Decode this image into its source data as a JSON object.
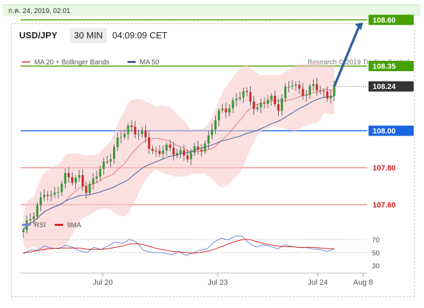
{
  "timestamp": "ก.ค. 24, 2019, 02:01",
  "header": {
    "symbol": "USD/JPY",
    "timeframe": "30 MIN",
    "time": "04:09:09 CET"
  },
  "legend": {
    "ma20_bb": "MA 20 + Bollinger Bands",
    "ma50": "MA 50",
    "rsi": "RSI",
    "ma9": "9MA"
  },
  "credit": "Research © 2019 Trading Central",
  "colors": {
    "support": "#e05555",
    "resistance": "#48a000",
    "pivot": "#1a66e0",
    "current": "#333333",
    "arrow": "#2e5fa0",
    "rsi": "#6f86d6",
    "ma9": "#d42020"
  },
  "chart_data": [
    {
      "type": "candlestick",
      "levels": [
        {
          "label": "108.60",
          "kind": "resistance"
        },
        {
          "label": "108.35",
          "kind": "resistance"
        },
        {
          "label": "108.24",
          "kind": "current"
        },
        {
          "label": "108.00",
          "kind": "pivot"
        },
        {
          "label": "107.80",
          "kind": "support"
        },
        {
          "label": "107.60",
          "kind": "support"
        }
      ],
      "x_ticks": [
        "Jul 20",
        "Jul 23",
        "Jul 24",
        "Aug 8"
      ],
      "price_path": [
        107.45,
        107.53,
        107.6,
        107.66,
        107.63,
        107.7,
        107.76,
        107.72,
        107.75,
        107.68,
        107.73,
        107.8,
        107.85,
        107.92,
        107.97,
        108.03,
        108.0,
        107.97,
        107.9,
        107.88,
        107.92,
        107.87,
        107.9,
        107.86,
        107.88,
        107.9,
        107.95,
        108.05,
        108.1,
        108.13,
        108.17,
        108.2,
        108.18,
        108.12,
        108.15,
        108.17,
        108.13,
        108.22,
        108.25,
        108.22,
        108.21,
        108.24,
        108.21,
        108.19,
        108.24
      ],
      "forecast_arrow": {
        "from": 108.24,
        "to": 108.6
      }
    },
    {
      "type": "line",
      "title": "RSI",
      "y_ticks": [
        70,
        50,
        30
      ],
      "series": [
        {
          "name": "RSI",
          "values": [
            48,
            52,
            56,
            60,
            55,
            58,
            61,
            56,
            55,
            50,
            56,
            57,
            60,
            64,
            66,
            70,
            64,
            56,
            50,
            48,
            52,
            46,
            50,
            48,
            49,
            52,
            58,
            66,
            70,
            72,
            75,
            73,
            66,
            58,
            60,
            62,
            55,
            60,
            62,
            57,
            56,
            58,
            54,
            50,
            58
          ]
        },
        {
          "name": "9MA",
          "values": [
            50,
            51,
            53,
            55,
            56,
            57,
            57,
            57,
            57,
            55,
            55,
            55,
            56,
            58,
            60,
            63,
            64,
            62,
            59,
            56,
            54,
            52,
            51,
            50,
            49,
            50,
            52,
            55,
            59,
            63,
            67,
            70,
            70,
            67,
            64,
            62,
            60,
            59,
            59,
            58,
            58,
            58,
            57,
            56,
            56
          ]
        }
      ]
    }
  ]
}
